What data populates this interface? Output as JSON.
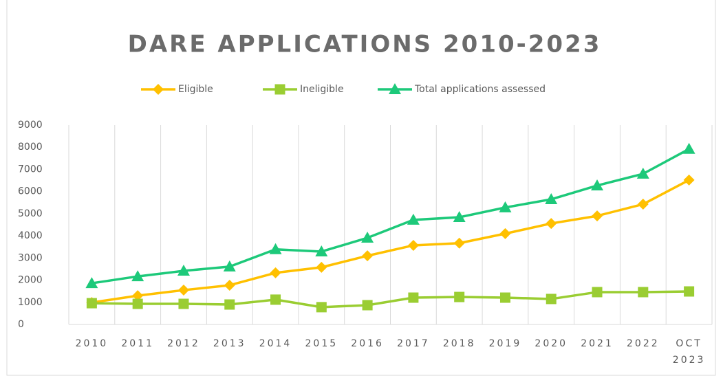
{
  "chart_data": {
    "type": "line",
    "title": "DARE APPLICATIONS 2010-2023",
    "categories": [
      "2010",
      "2011",
      "2012",
      "2013",
      "2014",
      "2015",
      "2016",
      "2017",
      "2018",
      "2019",
      "2020",
      "2021",
      "2022",
      "OCT 2023"
    ],
    "series": [
      {
        "name": "Eligible",
        "color": "#ffc000",
        "marker": "diamond",
        "values": [
          990,
          1300,
          1550,
          1770,
          2330,
          2580,
          3100,
          3570,
          3670,
          4100,
          4560,
          4900,
          5430,
          6520
        ]
      },
      {
        "name": "Ineligible",
        "color": "#9acd32",
        "marker": "square",
        "values": [
          960,
          930,
          930,
          900,
          1120,
          780,
          870,
          1210,
          1240,
          1210,
          1150,
          1460,
          1460,
          1490
        ]
      },
      {
        "name": "Total applications assessed",
        "color": "#1dc97a",
        "marker": "triangle",
        "values": [
          1860,
          2170,
          2420,
          2610,
          3390,
          3290,
          3910,
          4720,
          4840,
          5280,
          5650,
          6270,
          6800,
          7920
        ]
      }
    ],
    "ylim": [
      0,
      9000
    ],
    "yticks": [
      0,
      1000,
      2000,
      3000,
      4000,
      5000,
      6000,
      7000,
      8000,
      9000
    ],
    "grid": "vertical",
    "legend": "top"
  }
}
